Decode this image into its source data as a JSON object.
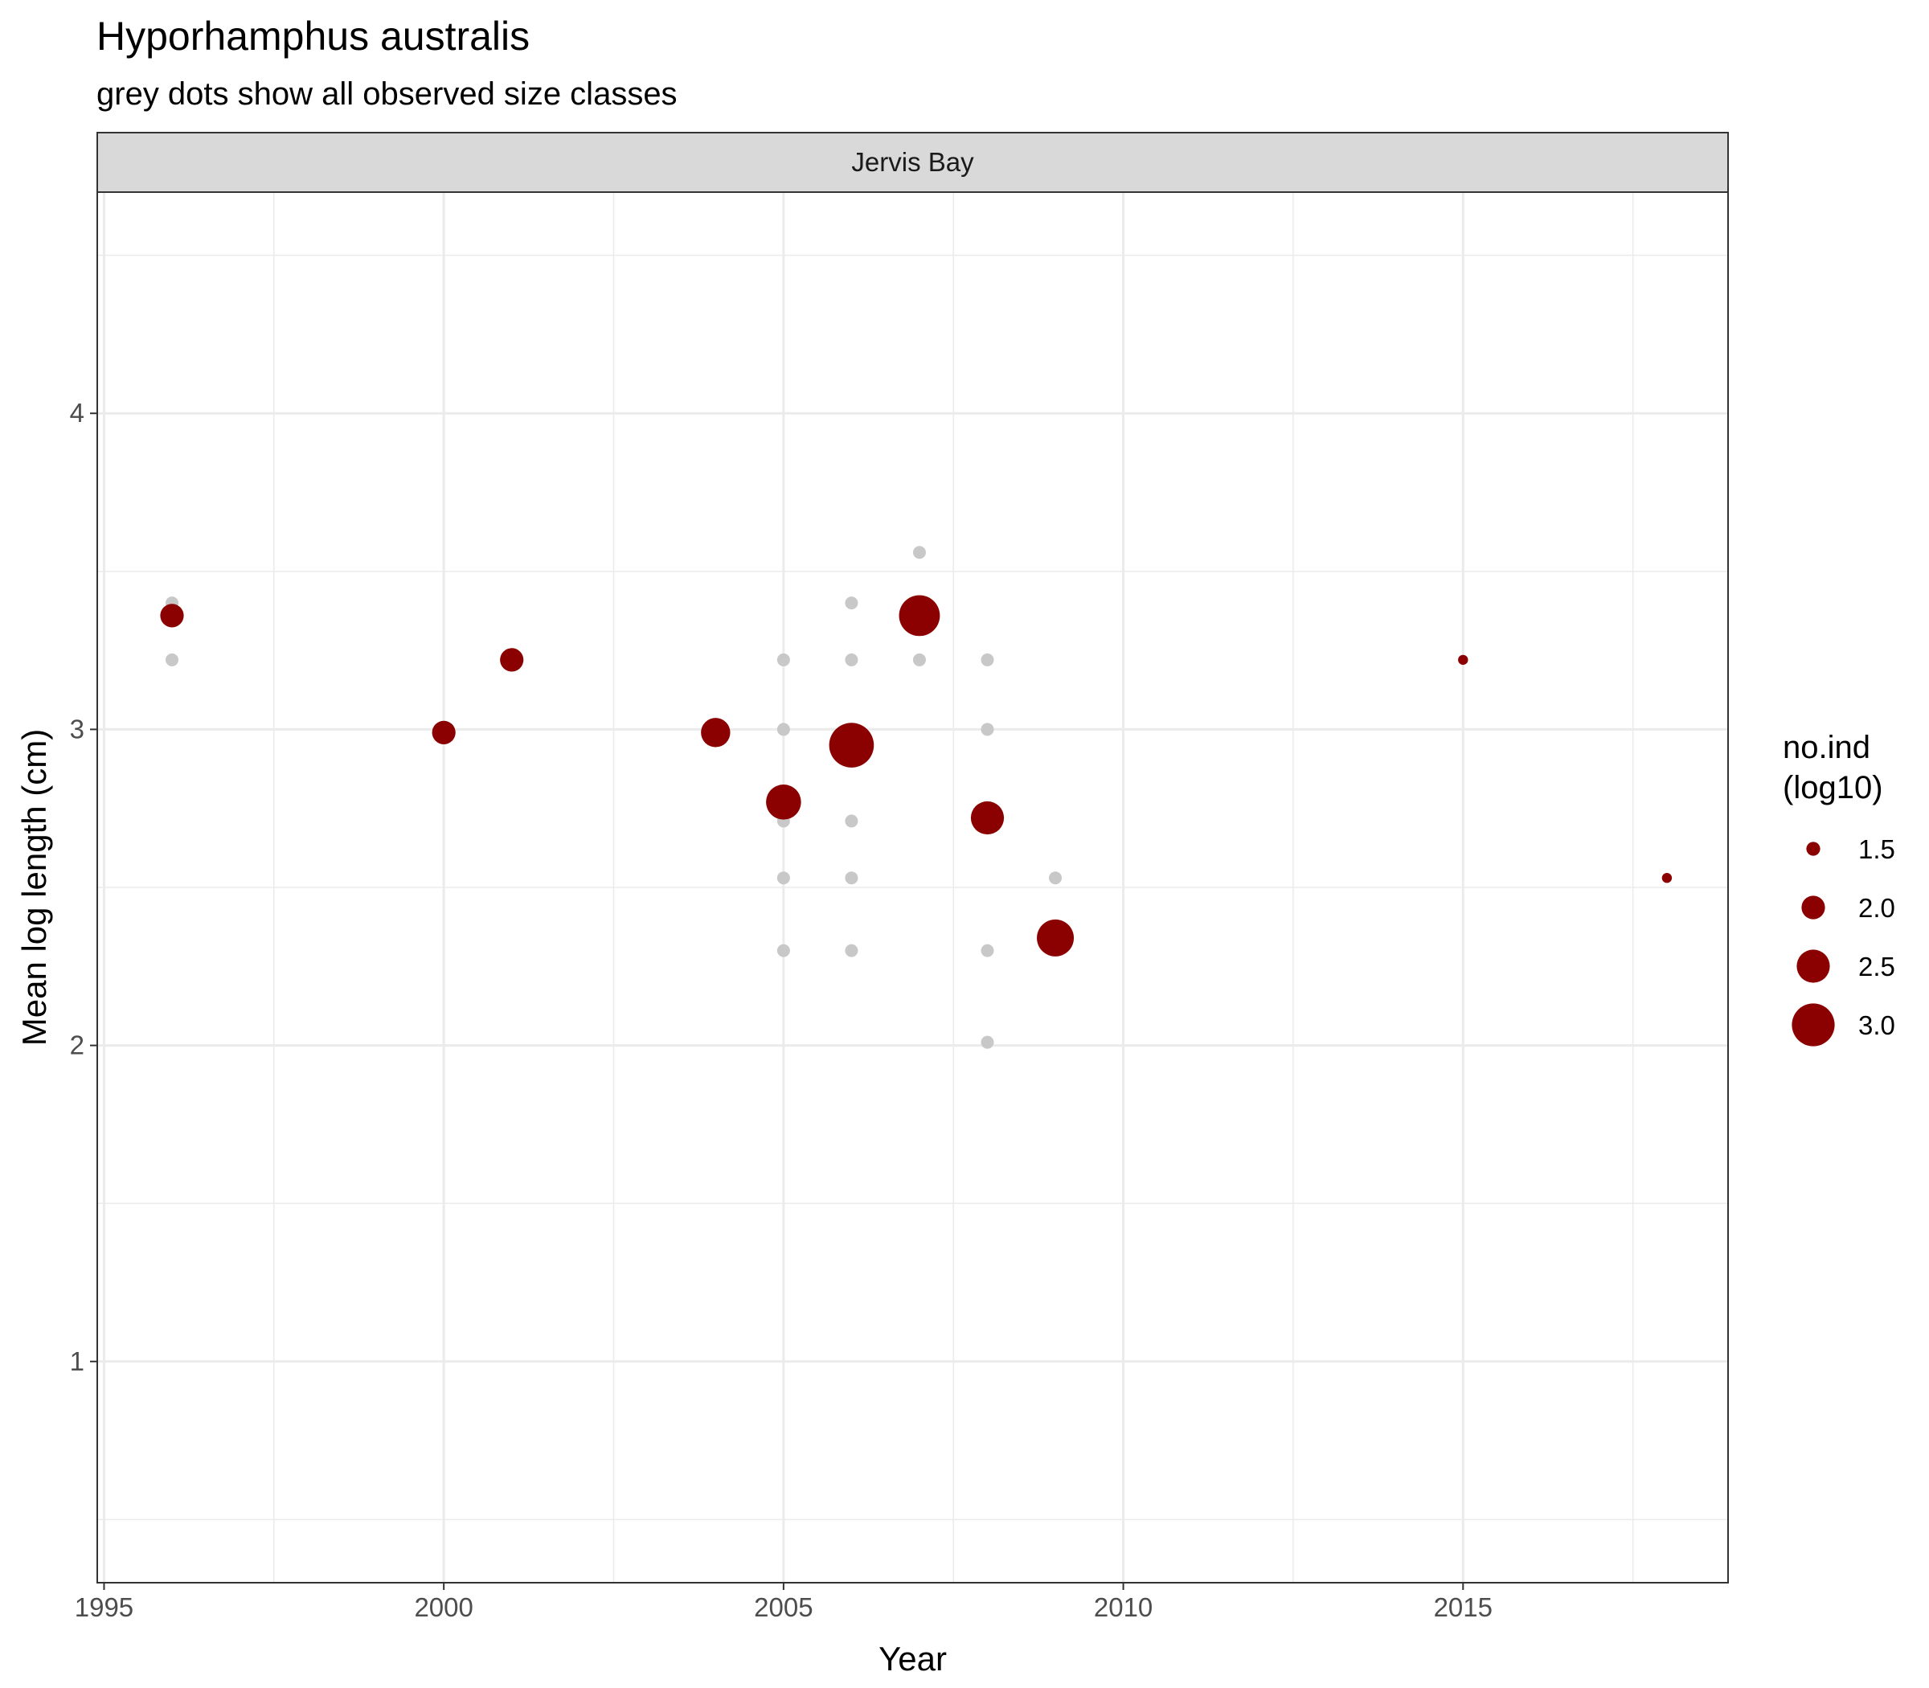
{
  "chart_data": {
    "type": "scatter",
    "title": "Hyporhamphus australis",
    "subtitle": "grey dots show all observed size classes",
    "facet": "Jervis Bay",
    "xlabel": "Year",
    "ylabel": "Mean log length (cm)",
    "xlim": [
      1994.9,
      2018.9
    ],
    "ylim": [
      0.3,
      4.7
    ],
    "x_ticks": [
      1995,
      2000,
      2005,
      2010,
      2015
    ],
    "y_ticks": [
      1,
      2,
      3,
      4
    ],
    "grid": true,
    "legend": {
      "title_lines": [
        "no.ind",
        "(log10)"
      ],
      "placement": "right",
      "entries": [
        {
          "label": "1.5",
          "value": 1.5
        },
        {
          "label": "2.0",
          "value": 2.0
        },
        {
          "label": "2.5",
          "value": 2.5
        },
        {
          "label": "3.0",
          "value": 3.0
        }
      ]
    },
    "colors": {
      "mean_points": "#8b0000",
      "observed_points": "#c8c8c8",
      "strip_fill": "#d9d9d9",
      "grid": "#ebebeb"
    },
    "series": [
      {
        "role": "observed size classes",
        "points": [
          {
            "x": 1996,
            "y": 3.4
          },
          {
            "x": 1996,
            "y": 3.22
          },
          {
            "x": 2005,
            "y": 3.22
          },
          {
            "x": 2005,
            "y": 3.0
          },
          {
            "x": 2005,
            "y": 2.71
          },
          {
            "x": 2005,
            "y": 2.53
          },
          {
            "x": 2005,
            "y": 2.3
          },
          {
            "x": 2006,
            "y": 3.4
          },
          {
            "x": 2006,
            "y": 3.22
          },
          {
            "x": 2006,
            "y": 2.71
          },
          {
            "x": 2006,
            "y": 2.53
          },
          {
            "x": 2006,
            "y": 2.3
          },
          {
            "x": 2007,
            "y": 3.56
          },
          {
            "x": 2007,
            "y": 3.22
          },
          {
            "x": 2008,
            "y": 3.22
          },
          {
            "x": 2008,
            "y": 3.0
          },
          {
            "x": 2008,
            "y": 2.3
          },
          {
            "x": 2008,
            "y": 2.01
          },
          {
            "x": 2009,
            "y": 2.53
          }
        ]
      },
      {
        "role": "mean log length",
        "points": [
          {
            "x": 1996,
            "y": 3.36,
            "no_ind_log10": 2.0
          },
          {
            "x": 2000,
            "y": 2.99,
            "no_ind_log10": 2.0
          },
          {
            "x": 2001,
            "y": 3.22,
            "no_ind_log10": 2.0
          },
          {
            "x": 2004,
            "y": 2.99,
            "no_ind_log10": 2.3
          },
          {
            "x": 2005,
            "y": 2.77,
            "no_ind_log10": 2.6
          },
          {
            "x": 2006,
            "y": 2.95,
            "no_ind_log10": 3.1
          },
          {
            "x": 2007,
            "y": 3.36,
            "no_ind_log10": 2.9
          },
          {
            "x": 2008,
            "y": 2.72,
            "no_ind_log10": 2.5
          },
          {
            "x": 2009,
            "y": 2.34,
            "no_ind_log10": 2.7
          },
          {
            "x": 2015,
            "y": 3.22,
            "no_ind_log10": 1.3
          },
          {
            "x": 2018,
            "y": 2.53,
            "no_ind_log10": 1.3
          }
        ]
      }
    ]
  }
}
